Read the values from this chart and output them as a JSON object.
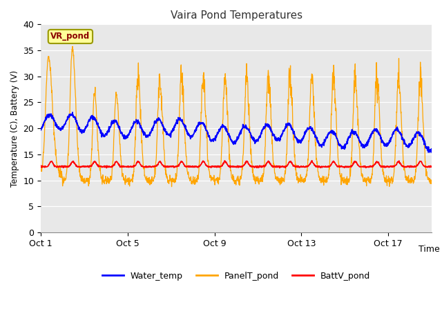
{
  "title": "Vaira Pond Temperatures",
  "xlabel": "Time",
  "ylabel": "Temperature (C), Battery (V)",
  "ylim": [
    0,
    40
  ],
  "yticks": [
    0,
    5,
    10,
    15,
    20,
    25,
    30,
    35,
    40
  ],
  "xtick_labels": [
    "Oct 1",
    "Oct 5",
    "Oct 9",
    "Oct 13",
    "Oct 17"
  ],
  "xtick_positions": [
    0,
    4,
    8,
    12,
    16
  ],
  "legend_labels": [
    "Water_temp",
    "PanelT_pond",
    "BattV_pond"
  ],
  "water_color": "#0000FF",
  "panel_color": "#FFA500",
  "batt_color": "#FF0000",
  "annotation_text": "VR_pond",
  "bg_color": "#ffffff",
  "plot_bg_color": "#e8e8e8",
  "grid_color": "#ffffff",
  "n_days": 18,
  "samples_per_day": 96
}
